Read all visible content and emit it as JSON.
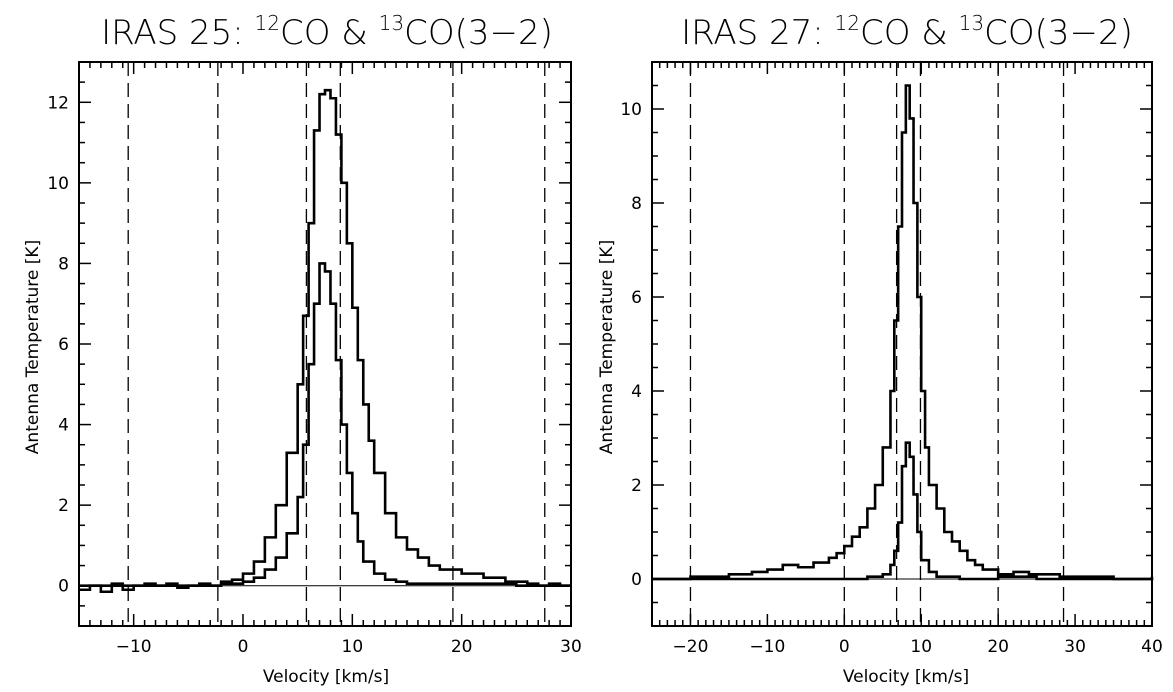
{
  "chart_data": [
    {
      "type": "line",
      "title": {
        "prefix": "IRAS 25:  ",
        "iso1": "12",
        "mol1": "CO & ",
        "iso2": "13",
        "mol2": "CO(3−2)"
      },
      "xlabel": "Velocity [km/s]",
      "ylabel": "Antenna Temperature [K]",
      "xlim": [
        -15,
        30
      ],
      "ylim": [
        -1,
        13
      ],
      "xticks": [
        -10,
        0,
        10,
        20,
        30
      ],
      "xtick_labels": [
        "−10",
        "0",
        "10",
        "20",
        "30"
      ],
      "yticks": [
        0,
        2,
        4,
        6,
        8,
        10,
        12
      ],
      "ytick_labels": [
        "0",
        "2",
        "4",
        "6",
        "8",
        "10",
        "12"
      ],
      "grid": false,
      "vlines": [
        -10.5,
        -2.3,
        5.8,
        8.9,
        19.2,
        27.6
      ],
      "series": [
        {
          "style": "step",
          "x": [
            -15,
            -14,
            -13,
            -12,
            -11,
            -10,
            -9,
            -8,
            -7,
            -6,
            -5,
            -4,
            -3,
            -2,
            -1,
            0,
            1,
            2,
            3,
            4,
            5,
            5.5,
            6,
            6.5,
            7,
            7.5,
            8,
            8.5,
            9,
            9.5,
            10,
            10.5,
            11,
            11.5,
            12,
            13,
            14,
            15,
            16,
            17,
            18,
            19,
            20,
            21,
            22,
            23,
            24,
            25,
            26,
            27,
            28,
            29,
            30
          ],
          "y": [
            -0.1,
            0.0,
            -0.15,
            0.05,
            -0.1,
            0.0,
            0.05,
            0.0,
            0.05,
            -0.05,
            0.0,
            0.05,
            0.0,
            0.1,
            0.15,
            0.3,
            0.6,
            1.2,
            2.0,
            3.3,
            5.0,
            6.7,
            9.0,
            11.3,
            12.2,
            12.3,
            12.1,
            11.2,
            10.0,
            8.5,
            6.9,
            5.6,
            4.5,
            3.6,
            2.8,
            1.8,
            1.2,
            0.9,
            0.7,
            0.5,
            0.4,
            0.4,
            0.3,
            0.3,
            0.2,
            0.2,
            0.1,
            0.1,
            0.05,
            0.0,
            0.05,
            0.0,
            0.0
          ]
        },
        {
          "style": "step",
          "x": [
            -15,
            -10,
            -5,
            -2,
            0,
            1,
            2,
            3,
            4,
            5,
            5.5,
            6,
            6.5,
            7,
            7.5,
            8,
            8.5,
            9,
            9.5,
            10,
            10.5,
            11,
            12,
            13,
            14,
            15,
            20,
            25,
            30
          ],
          "y": [
            0.0,
            0.0,
            0.0,
            0.05,
            0.1,
            0.2,
            0.4,
            0.7,
            1.3,
            2.2,
            3.5,
            5.5,
            7.0,
            8.0,
            7.8,
            7.0,
            5.6,
            4.0,
            2.8,
            1.8,
            1.1,
            0.6,
            0.3,
            0.15,
            0.1,
            0.05,
            0.05,
            0.0,
            0.0
          ]
        }
      ]
    },
    {
      "type": "line",
      "title": {
        "prefix": "IRAS 27:  ",
        "iso1": "12",
        "mol1": "CO & ",
        "iso2": "13",
        "mol2": "CO(3−2)"
      },
      "xlabel": "Velocity [km/s]",
      "ylabel": "Antenna Temperature [K]",
      "xlim": [
        -25,
        40
      ],
      "ylim": [
        -1,
        11
      ],
      "xticks": [
        -20,
        -10,
        0,
        10,
        20,
        30,
        40
      ],
      "xtick_labels": [
        "−20",
        "−10",
        "0",
        "10",
        "20",
        "30",
        "40"
      ],
      "yticks": [
        0,
        2,
        4,
        6,
        8,
        10
      ],
      "ytick_labels": [
        "0",
        "2",
        "4",
        "6",
        "8",
        "10"
      ],
      "grid": false,
      "vlines": [
        -20,
        0,
        6.8,
        9.9,
        20,
        28.5
      ],
      "series": [
        {
          "style": "step",
          "x": [
            -25,
            -20,
            -15,
            -12,
            -10,
            -8,
            -6,
            -4,
            -2,
            -1,
            0,
            1,
            2,
            3,
            4,
            5,
            6,
            6.5,
            7,
            7.5,
            8,
            8.5,
            9,
            9.5,
            10,
            10.5,
            11,
            12,
            13,
            14,
            15,
            16,
            17,
            18,
            20,
            22,
            24,
            26,
            28,
            30,
            35,
            40
          ],
          "y": [
            0.0,
            0.05,
            0.1,
            0.15,
            0.2,
            0.3,
            0.25,
            0.35,
            0.45,
            0.55,
            0.7,
            0.9,
            1.1,
            1.5,
            2.0,
            2.8,
            4.0,
            5.5,
            7.5,
            9.5,
            10.5,
            9.8,
            8.0,
            6.0,
            4.0,
            2.8,
            2.0,
            1.5,
            1.0,
            0.8,
            0.6,
            0.4,
            0.3,
            0.2,
            0.1,
            0.15,
            0.1,
            0.1,
            0.05,
            0.05,
            0.0,
            0.05
          ]
        },
        {
          "style": "step",
          "x": [
            -25,
            -10,
            0,
            3,
            5,
            6,
            6.5,
            7,
            7.5,
            8,
            8.5,
            9,
            9.5,
            10,
            11,
            12,
            15,
            20,
            25,
            30,
            40
          ],
          "y": [
            0.0,
            0.0,
            0.0,
            0.05,
            0.1,
            0.3,
            0.6,
            1.2,
            2.4,
            2.9,
            2.6,
            1.8,
            1.0,
            0.4,
            0.15,
            0.05,
            0.0,
            0.05,
            0.0,
            0.0,
            0.0
          ]
        }
      ]
    }
  ]
}
